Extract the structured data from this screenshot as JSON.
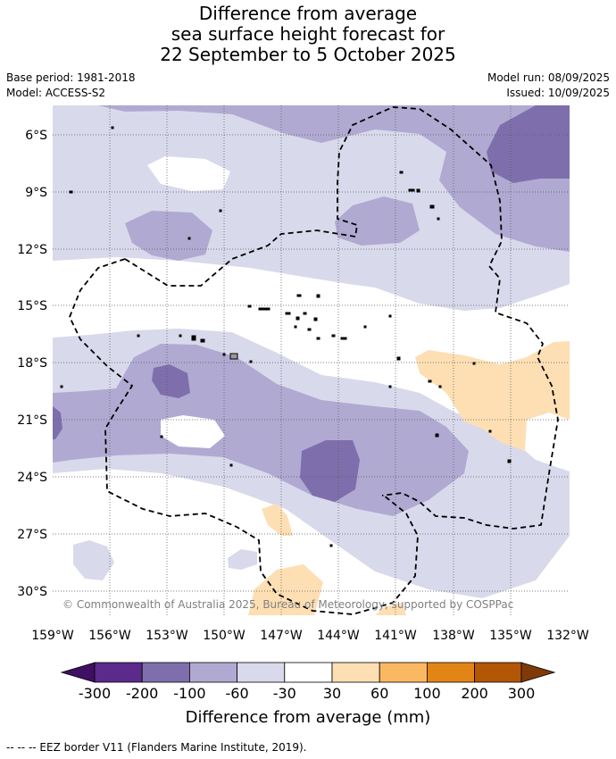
{
  "title": {
    "line1": "Difference from average",
    "line2": "sea surface height forecast for",
    "line3": "22 September to 5 October 2025"
  },
  "meta": {
    "base_period": "Base period: 1981-2018",
    "model": "Model: ACCESS-S2",
    "model_run": "Model run: 08/09/2025",
    "issued": "Issued: 10/09/2025"
  },
  "map": {
    "lon_range": [
      -159,
      -132
    ],
    "lat_range": [
      -31.5,
      -4
    ],
    "lon_ticks": [
      "159°W",
      "156°W",
      "153°W",
      "150°W",
      "147°W",
      "144°W",
      "141°W",
      "138°W",
      "135°W",
      "132°W"
    ],
    "lat_ticks": [
      "6°S",
      "9°S",
      "12°S",
      "15°S",
      "18°S",
      "21°S",
      "24°S",
      "27°S",
      "30°S"
    ],
    "credit": "© Commonwealth of Australia 2025, Bureau of Meteorology, supported by COSPPac",
    "colors": {
      "neg300": "#3f0f63",
      "neg200": "#5b2a8a",
      "neg100": "#7e6fac",
      "neg60": "#b0aad2",
      "neg30": "#d9d9ec",
      "zero": "#ffffff",
      "pos30": "#fddfb3",
      "pos60": "#fbb863",
      "pos100": "#e28516",
      "pos200": "#b35606",
      "pos300": "#7f3a08"
    }
  },
  "colorbar": {
    "labels": [
      "-300",
      "-200",
      "-100",
      "-60",
      "-30",
      "30",
      "60",
      "100",
      "200",
      "300"
    ],
    "title": "Difference from average (mm)"
  },
  "footnote": "--  --  -- EEZ border V11 (Flanders Marine Institute, 2019)."
}
